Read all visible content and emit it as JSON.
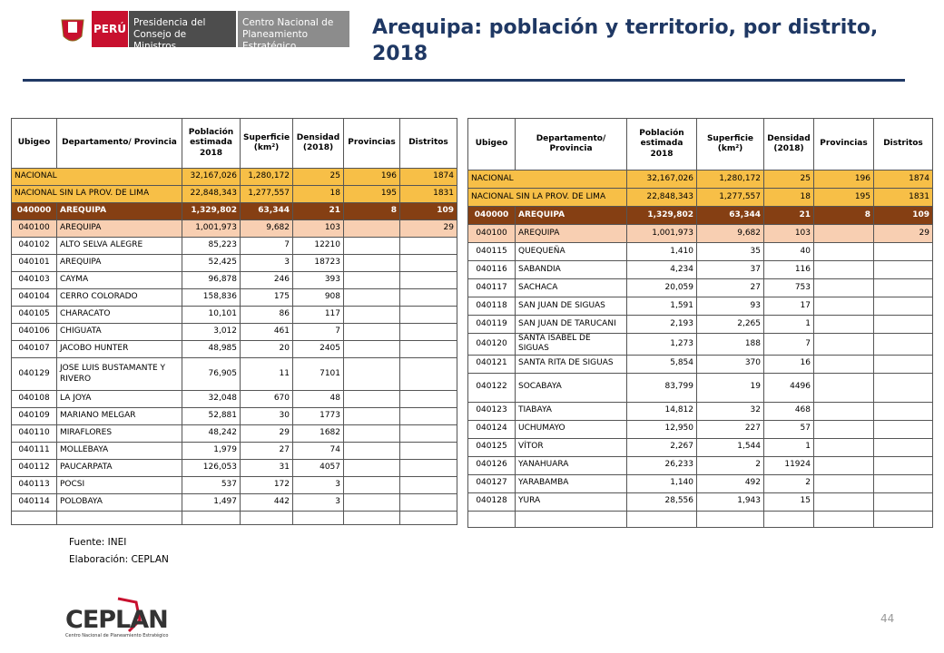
{
  "header": {
    "country": "PERÚ",
    "ministry": "Presidencia del Consejo de Ministros",
    "agency": "Centro Nacional de Planeamiento Estratégico",
    "title": "Arequipa: población y territorio, por distrito, 2018"
  },
  "left_table": {
    "columns": [
      "Ubigeo",
      "Departamento/ Provincia",
      "Población estimada 2018",
      "Superficie (km²)",
      "Densidad (2018)",
      "Provincias",
      "Distritos"
    ],
    "rows": [
      {
        "name": "NACIONAL",
        "population": "32,167,026",
        "area": "1,280,172",
        "density": "25",
        "provinces": "196",
        "districts": "1874"
      },
      {
        "name": "NACIONAL SIN LA PROV. DE LIMA",
        "population": "22,848,343",
        "area": "1,277,557",
        "density": "18",
        "provinces": "195",
        "districts": "1831"
      },
      {
        "ubigeo": "040000",
        "name": "AREQUIPA",
        "population": "1,329,802",
        "area": "63,344",
        "density": "21",
        "provinces": "8",
        "districts": "109"
      },
      {
        "ubigeo": "040100",
        "name": "AREQUIPA",
        "population": "1,001,973",
        "area": "9,682",
        "density": "103",
        "districts": "29"
      },
      {
        "ubigeo": "040102",
        "name": "ALTO SELVA ALEGRE",
        "population": "85,223",
        "area": "7",
        "density": "12210"
      },
      {
        "ubigeo": "040101",
        "name": "AREQUIPA",
        "population": "52,425",
        "area": "3",
        "density": "18723"
      },
      {
        "ubigeo": "040103",
        "name": "CAYMA",
        "population": "96,878",
        "area": "246",
        "density": "393"
      },
      {
        "ubigeo": "040104",
        "name": "CERRO COLORADO",
        "population": "158,836",
        "area": "175",
        "density": "908"
      },
      {
        "ubigeo": "040105",
        "name": "CHARACATO",
        "population": "10,101",
        "area": "86",
        "density": "117"
      },
      {
        "ubigeo": "040106",
        "name": "CHIGUATA",
        "population": "3,012",
        "area": "461",
        "density": "7"
      },
      {
        "ubigeo": "040107",
        "name": "JACOBO HUNTER",
        "population": "48,985",
        "area": "20",
        "density": "2405"
      },
      {
        "ubigeo": "040129",
        "name": "JOSE LUIS BUSTAMANTE Y RIVERO",
        "population": "76,905",
        "area": "11",
        "density": "7101"
      },
      {
        "ubigeo": "040108",
        "name": "LA JOYA",
        "population": "32,048",
        "area": "670",
        "density": "48"
      },
      {
        "ubigeo": "040109",
        "name": "MARIANO MELGAR",
        "population": "52,881",
        "area": "30",
        "density": "1773"
      },
      {
        "ubigeo": "040110",
        "name": "MIRAFLORES",
        "population": "48,242",
        "area": "29",
        "density": "1682"
      },
      {
        "ubigeo": "040111",
        "name": "MOLLEBAYA",
        "population": "1,979",
        "area": "27",
        "density": "74"
      },
      {
        "ubigeo": "040112",
        "name": "PAUCARPATA",
        "population": "126,053",
        "area": "31",
        "density": "4057"
      },
      {
        "ubigeo": "040113",
        "name": "POCSI",
        "population": "537",
        "area": "172",
        "density": "3"
      },
      {
        "ubigeo": "040114",
        "name": "POLOBAYA",
        "population": "1,497",
        "area": "442",
        "density": "3"
      }
    ]
  },
  "right_table": {
    "columns": [
      "Ubigeo",
      "Departamento/ Provincia",
      "Población estimada 2018",
      "Superficie (km²)",
      "Densidad (2018)",
      "Provincias",
      "Distritos"
    ],
    "rows": [
      {
        "name": "NACIONAL",
        "population": "32,167,026",
        "area": "1,280,172",
        "density": "25",
        "provinces": "196",
        "districts": "1874"
      },
      {
        "name": "NACIONAL SIN LA PROV. DE LIMA",
        "population": "22,848,343",
        "area": "1,277,557",
        "density": "18",
        "provinces": "195",
        "districts": "1831"
      },
      {
        "ubigeo": "040000",
        "name": "AREQUIPA",
        "population": "1,329,802",
        "area": "63,344",
        "density": "21",
        "provinces": "8",
        "districts": "109"
      },
      {
        "ubigeo": "040100",
        "name": "AREQUIPA",
        "population": "1,001,973",
        "area": "9,682",
        "density": "103",
        "districts": "29"
      },
      {
        "ubigeo": "040115",
        "name": "QUEQUEÑA",
        "population": "1,410",
        "area": "35",
        "density": "40"
      },
      {
        "ubigeo": "040116",
        "name": "SABANDIA",
        "population": "4,234",
        "area": "37",
        "density": "116"
      },
      {
        "ubigeo": "040117",
        "name": "SACHACA",
        "population": "20,059",
        "area": "27",
        "density": "753"
      },
      {
        "ubigeo": "040118",
        "name": "SAN JUAN DE SIGUAS",
        "population": "1,591",
        "area": "93",
        "density": "17"
      },
      {
        "ubigeo": "040119",
        "name": "SAN JUAN DE TARUCANI",
        "population": "2,193",
        "area": "2,265",
        "density": "1"
      },
      {
        "ubigeo": "040120",
        "name": "SANTA ISABEL DE SIGUAS",
        "population": "1,273",
        "area": "188",
        "density": "7"
      },
      {
        "ubigeo": "040121",
        "name": "SANTA RITA DE SIGUAS",
        "population": "5,854",
        "area": "370",
        "density": "16"
      },
      {
        "ubigeo": "040122",
        "name": "SOCABAYA",
        "population": "83,799",
        "area": "19",
        "density": "4496"
      },
      {
        "ubigeo": "040123",
        "name": "TIABAYA",
        "population": "14,812",
        "area": "32",
        "density": "468"
      },
      {
        "ubigeo": "040124",
        "name": "UCHUMAYO",
        "population": "12,950",
        "area": "227",
        "density": "57"
      },
      {
        "ubigeo": "040125",
        "name": "VÍTOR",
        "population": "2,267",
        "area": "1,544",
        "density": "1"
      },
      {
        "ubigeo": "040126",
        "name": "YANAHUARA",
        "population": "26,233",
        "area": "2",
        "density": "11924"
      },
      {
        "ubigeo": "040127",
        "name": "YARABAMBA",
        "population": "1,140",
        "area": "492",
        "density": "2"
      },
      {
        "ubigeo": "040128",
        "name": "YURA",
        "population": "28,556",
        "area": "1,943",
        "density": "15"
      }
    ]
  },
  "notes": {
    "source": "Fuente: INEI",
    "credit": "Elaboración: CEPLAN"
  },
  "footer": {
    "logo": "CEPLAN",
    "logo_caption": "Centro Nacional de Planeamiento Estratégico",
    "page": "44"
  }
}
